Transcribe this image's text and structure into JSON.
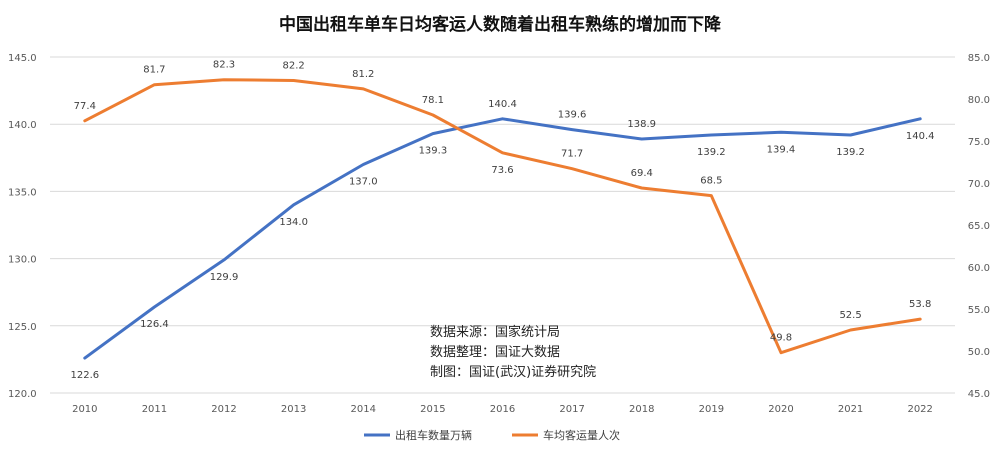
{
  "chart_data": {
    "type": "line",
    "title": "中国出租车单车日均客运人数随着出租车熟练的增加而下降",
    "categories": [
      "2010",
      "2011",
      "2012",
      "2013",
      "2014",
      "2015",
      "2016",
      "2017",
      "2018",
      "2019",
      "2020",
      "2021",
      "2022"
    ],
    "y_left": {
      "min": 120,
      "max": 145,
      "step": 5,
      "tick_labels": [
        "120.0",
        "125.0",
        "130.0",
        "135.0",
        "140.0",
        "145.0"
      ]
    },
    "y_right": {
      "min": 45,
      "max": 85,
      "step": 5,
      "tick_labels": [
        "45.0",
        "50.0",
        "55.0",
        "60.0",
        "65.0",
        "70.0",
        "75.0",
        "80.0",
        "85.0"
      ]
    },
    "grid": true,
    "legend_position": "bottom",
    "series": [
      {
        "name": "出租车数量万辆",
        "axis": "left",
        "color": "#4472C4",
        "values": [
          122.6,
          126.4,
          129.9,
          134.0,
          137.0,
          139.3,
          140.4,
          139.6,
          138.9,
          139.2,
          139.4,
          139.2,
          140.4
        ],
        "labels": [
          "122.6",
          "126.4",
          "129.9",
          "134.0",
          "137.0",
          "139.3",
          "140.4",
          "139.6",
          "138.9",
          "139.2",
          "139.4",
          "139.2",
          "140.4"
        ],
        "label_side": [
          "below",
          "below",
          "below",
          "below",
          "below",
          "below",
          "above",
          "above",
          "above",
          "below",
          "below",
          "below",
          "below"
        ]
      },
      {
        "name": "车均客运量人次",
        "axis": "right",
        "color": "#ED7D31",
        "values": [
          77.4,
          81.7,
          82.3,
          82.2,
          81.2,
          78.1,
          73.6,
          71.7,
          69.4,
          68.5,
          49.8,
          52.5,
          53.8
        ],
        "labels": [
          "77.4",
          "81.7",
          "82.3",
          "82.2",
          "81.2",
          "78.1",
          "73.6",
          "71.7",
          "69.4",
          "68.5",
          "49.8",
          "52.5",
          "53.8"
        ],
        "label_side": [
          "above",
          "above",
          "above",
          "above",
          "above",
          "above",
          "below",
          "above",
          "above",
          "above",
          "above",
          "above",
          "above"
        ]
      }
    ],
    "annotations": [
      "数据来源：国家统计局",
      "数据整理：国证大数据",
      "制图：国证(武汉)证券研究院"
    ]
  }
}
